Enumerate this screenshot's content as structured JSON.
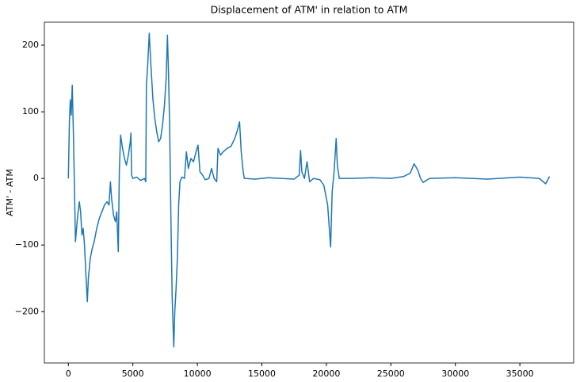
{
  "chart_data": {
    "type": "line",
    "title": "Displacement of ATM' in relation to ATM",
    "y_label": "ATM' - ATM",
    "x": [
      0,
      80,
      150,
      220,
      300,
      400,
      550,
      700,
      850,
      950,
      1050,
      1150,
      1250,
      1350,
      1470,
      1550,
      1700,
      1850,
      2000,
      2200,
      2400,
      2600,
      2800,
      3000,
      3150,
      3260,
      3350,
      3500,
      3650,
      3750,
      3870,
      3950,
      4050,
      4200,
      4350,
      4500,
      4650,
      4800,
      4850,
      4900,
      5000,
      5300,
      5600,
      5900,
      6000,
      6050,
      6150,
      6270,
      6400,
      6550,
      6700,
      6850,
      7000,
      7150,
      7300,
      7450,
      7580,
      7680,
      7760,
      7850,
      7950,
      8050,
      8170,
      8250,
      8350,
      8450,
      8550,
      8650,
      8800,
      9000,
      9150,
      9300,
      9500,
      9700,
      9900,
      10050,
      10200,
      10400,
      10600,
      10900,
      11100,
      11300,
      11500,
      11600,
      11800,
      12000,
      12300,
      12600,
      12900,
      13100,
      13270,
      13400,
      13550,
      13640,
      14500,
      15500,
      16500,
      17500,
      17900,
      18000,
      18100,
      18300,
      18500,
      18700,
      19000,
      19500,
      19800,
      20100,
      20330,
      20450,
      20600,
      20760,
      20850,
      21000,
      22000,
      23500,
      25000,
      26000,
      26500,
      26800,
      27100,
      27300,
      27500,
      28000,
      30000,
      32500,
      35000,
      36500,
      37000,
      37300
    ],
    "series": [
      {
        "name": "ATM' - ATM",
        "color": "#1f77b4",
        "values": [
          0,
          85,
          118,
          95,
          140,
          60,
          -95,
          -60,
          -35,
          -50,
          -85,
          -75,
          -100,
          -140,
          -185,
          -150,
          -120,
          -105,
          -95,
          -75,
          -60,
          -50,
          -40,
          -35,
          -40,
          -5,
          -30,
          -55,
          -65,
          -50,
          -110,
          10,
          65,
          45,
          30,
          20,
          35,
          55,
          68,
          5,
          0,
          2,
          -3,
          0,
          -5,
          140,
          170,
          218,
          170,
          120,
          90,
          70,
          55,
          60,
          80,
          110,
          150,
          215,
          160,
          80,
          -60,
          -180,
          -253,
          -200,
          -165,
          -120,
          -40,
          -5,
          2,
          0,
          40,
          15,
          30,
          25,
          40,
          50,
          10,
          5,
          -2,
          0,
          15,
          0,
          -5,
          45,
          35,
          40,
          45,
          48,
          60,
          72,
          85,
          40,
          10,
          0,
          -1,
          1,
          0,
          -1,
          5,
          42,
          10,
          0,
          25,
          -5,
          0,
          -2,
          -10,
          -40,
          -103,
          -20,
          10,
          60,
          20,
          0,
          0,
          1,
          0,
          3,
          8,
          22,
          12,
          0,
          -6,
          0,
          1,
          -1,
          2,
          0,
          -8,
          3
        ]
      }
    ],
    "xlim": [
      -1860,
      39170
    ],
    "ylim": [
      -277,
      234.5
    ],
    "xticks": [
      0,
      5000,
      10000,
      15000,
      20000,
      25000,
      30000,
      35000
    ],
    "yticks": [
      {
        "value": -200,
        "label": "−200"
      },
      {
        "value": -100,
        "label": "−100"
      },
      0,
      100,
      200
    ]
  }
}
